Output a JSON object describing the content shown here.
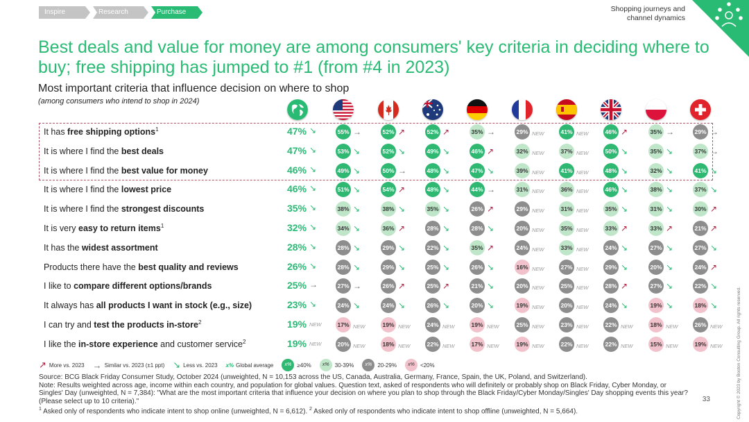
{
  "breadcrumb": [
    {
      "label": "Inspire",
      "active": false
    },
    {
      "label": "Research",
      "active": false
    },
    {
      "label": "Purchase",
      "active": true
    }
  ],
  "section_title": "Shopping journeys and channel dynamics",
  "title": "Best deals and value for money are among consumers' key criteria in deciding where to buy; free shipping has jumped to #1 (from #4 in 2023)",
  "chart_data": {
    "type": "table",
    "title": "Most important criteria that influence decision on where to shop",
    "subtitle": "(among consumers who intend to shop in 2024)",
    "columns": [
      "Global",
      "US",
      "Canada",
      "Australia",
      "Germany",
      "France",
      "Spain",
      "UK",
      "Poland",
      "Switzerland"
    ],
    "rows": [
      {
        "pre": "It has ",
        "bold": "free shipping options",
        "post": "",
        "sup": "1",
        "global": {
          "v": 47,
          "t": "down"
        },
        "cells": [
          {
            "v": 55,
            "t": "flat"
          },
          {
            "v": 52,
            "t": "up"
          },
          {
            "v": 52,
            "t": "up"
          },
          {
            "v": 35,
            "t": "flat"
          },
          {
            "v": 29,
            "t": "new"
          },
          {
            "v": 41,
            "t": "new"
          },
          {
            "v": 46,
            "t": "up"
          },
          {
            "v": 35,
            "t": "flat"
          },
          {
            "v": 29,
            "t": "flat"
          }
        ]
      },
      {
        "pre": "It is where I find the ",
        "bold": "best deals",
        "post": "",
        "sup": "",
        "global": {
          "v": 47,
          "t": "down"
        },
        "cells": [
          {
            "v": 53,
            "t": "down"
          },
          {
            "v": 52,
            "t": "down"
          },
          {
            "v": 49,
            "t": "down"
          },
          {
            "v": 46,
            "t": "up"
          },
          {
            "v": 32,
            "t": "new"
          },
          {
            "v": 37,
            "t": "new"
          },
          {
            "v": 50,
            "t": "down"
          },
          {
            "v": 35,
            "t": "down"
          },
          {
            "v": 37,
            "t": "flat"
          }
        ]
      },
      {
        "pre": "It is where I find the ",
        "bold": "best value for money",
        "post": "",
        "sup": "",
        "global": {
          "v": 46,
          "t": "down"
        },
        "cells": [
          {
            "v": 49,
            "t": "down"
          },
          {
            "v": 50,
            "t": "flat"
          },
          {
            "v": 48,
            "t": "down"
          },
          {
            "v": 47,
            "t": "down"
          },
          {
            "v": 39,
            "t": "new"
          },
          {
            "v": 41,
            "t": "new"
          },
          {
            "v": 48,
            "t": "down"
          },
          {
            "v": 32,
            "t": "down"
          },
          {
            "v": 41,
            "t": "down"
          }
        ]
      },
      {
        "pre": "It is where I find the ",
        "bold": "lowest price",
        "post": "",
        "sup": "",
        "global": {
          "v": 46,
          "t": "down"
        },
        "cells": [
          {
            "v": 51,
            "t": "down"
          },
          {
            "v": 54,
            "t": "up"
          },
          {
            "v": 48,
            "t": "down"
          },
          {
            "v": 44,
            "t": "flat"
          },
          {
            "v": 31,
            "t": "new"
          },
          {
            "v": 36,
            "t": "new"
          },
          {
            "v": 46,
            "t": "down"
          },
          {
            "v": 38,
            "t": "down"
          },
          {
            "v": 37,
            "t": "down"
          }
        ]
      },
      {
        "pre": "It is where I find the ",
        "bold": "strongest discounts",
        "post": "",
        "sup": "",
        "global": {
          "v": 35,
          "t": "down"
        },
        "cells": [
          {
            "v": 38,
            "t": "down"
          },
          {
            "v": 38,
            "t": "down"
          },
          {
            "v": 35,
            "t": "down"
          },
          {
            "v": 26,
            "t": "up"
          },
          {
            "v": 29,
            "t": "new"
          },
          {
            "v": 31,
            "t": "new"
          },
          {
            "v": 35,
            "t": "down"
          },
          {
            "v": 31,
            "t": "down"
          },
          {
            "v": 30,
            "t": "up"
          }
        ]
      },
      {
        "pre": "It is very ",
        "bold": "easy to return items",
        "post": "",
        "sup": "1",
        "global": {
          "v": 32,
          "t": "down"
        },
        "cells": [
          {
            "v": 34,
            "t": "down"
          },
          {
            "v": 36,
            "t": "up"
          },
          {
            "v": 28,
            "t": "down"
          },
          {
            "v": 28,
            "t": "down"
          },
          {
            "v": 20,
            "t": "new"
          },
          {
            "v": 35,
            "t": "new"
          },
          {
            "v": 33,
            "t": "up"
          },
          {
            "v": 33,
            "t": "up"
          },
          {
            "v": 21,
            "t": "up"
          }
        ]
      },
      {
        "pre": "It has the ",
        "bold": "widest assortment",
        "post": "",
        "sup": "",
        "global": {
          "v": 28,
          "t": "down"
        },
        "cells": [
          {
            "v": 28,
            "t": "down"
          },
          {
            "v": 29,
            "t": "down"
          },
          {
            "v": 22,
            "t": "down"
          },
          {
            "v": 35,
            "t": "up"
          },
          {
            "v": 24,
            "t": "new"
          },
          {
            "v": 33,
            "t": "new"
          },
          {
            "v": 24,
            "t": "down"
          },
          {
            "v": 27,
            "t": "down"
          },
          {
            "v": 27,
            "t": "down"
          }
        ]
      },
      {
        "pre": "Products there have the ",
        "bold": "best quality and reviews",
        "post": "",
        "sup": "",
        "global": {
          "v": 26,
          "t": "down"
        },
        "cells": [
          {
            "v": 28,
            "t": "down"
          },
          {
            "v": 29,
            "t": "down"
          },
          {
            "v": 25,
            "t": "down"
          },
          {
            "v": 26,
            "t": "down"
          },
          {
            "v": 16,
            "t": "new"
          },
          {
            "v": 27,
            "t": "new"
          },
          {
            "v": 29,
            "t": "down"
          },
          {
            "v": 20,
            "t": "down"
          },
          {
            "v": 24,
            "t": "up"
          }
        ]
      },
      {
        "pre": "I like to ",
        "bold": "compare different options/brands",
        "post": "",
        "sup": "",
        "global": {
          "v": 25,
          "t": "flat"
        },
        "cells": [
          {
            "v": 27,
            "t": "flat"
          },
          {
            "v": 26,
            "t": "up"
          },
          {
            "v": 25,
            "t": "up"
          },
          {
            "v": 21,
            "t": "down"
          },
          {
            "v": 20,
            "t": "new"
          },
          {
            "v": 25,
            "t": "new"
          },
          {
            "v": 28,
            "t": "up"
          },
          {
            "v": 27,
            "t": "down"
          },
          {
            "v": 22,
            "t": "down"
          }
        ]
      },
      {
        "pre": "It always has ",
        "bold": "all products I want in stock (e.g., size)",
        "post": "",
        "sup": "",
        "global": {
          "v": 23,
          "t": "down"
        },
        "cells": [
          {
            "v": 24,
            "t": "down"
          },
          {
            "v": 24,
            "t": "down"
          },
          {
            "v": 26,
            "t": "down"
          },
          {
            "v": 20,
            "t": "down"
          },
          {
            "v": 19,
            "t": "new"
          },
          {
            "v": 20,
            "t": "new"
          },
          {
            "v": 24,
            "t": "down"
          },
          {
            "v": 19,
            "t": "down"
          },
          {
            "v": 18,
            "t": "down"
          }
        ]
      },
      {
        "pre": "I can try and ",
        "bold": "test the products in-store",
        "post": "",
        "sup": "2",
        "global": {
          "v": 19,
          "t": "new"
        },
        "cells": [
          {
            "v": 17,
            "t": "new"
          },
          {
            "v": 19,
            "t": "new"
          },
          {
            "v": 24,
            "t": "new"
          },
          {
            "v": 19,
            "t": "new"
          },
          {
            "v": 25,
            "t": "new"
          },
          {
            "v": 23,
            "t": "new"
          },
          {
            "v": 22,
            "t": "new"
          },
          {
            "v": 18,
            "t": "new"
          },
          {
            "v": 26,
            "t": "new"
          }
        ]
      },
      {
        "pre": "I like the ",
        "bold": "in-store experience",
        "post": " and customer service",
        "sup": "2",
        "global": {
          "v": 19,
          "t": "new"
        },
        "cells": [
          {
            "v": 20,
            "t": "new"
          },
          {
            "v": 18,
            "t": "new"
          },
          {
            "v": 22,
            "t": "new"
          },
          {
            "v": 17,
            "t": "new"
          },
          {
            "v": 19,
            "t": "new"
          },
          {
            "v": 22,
            "t": "new"
          },
          {
            "v": 22,
            "t": "new"
          },
          {
            "v": 15,
            "t": "new"
          },
          {
            "v": 19,
            "t": "new"
          }
        ]
      }
    ],
    "legend": {
      "more": "More vs. 2023",
      "similar": "Similar vs. 2023 (±1 ppt)",
      "less": "Less vs. 2023",
      "global_symbol": "x%",
      "global_avg": "Global average",
      "bubble_symbol": "x%",
      "b40": "≥40%",
      "b30": "30-39%",
      "b20": "20-29%",
      "blt": "<20%"
    },
    "new_label": "NEW"
  },
  "source": {
    "line1": "Source: BCG Black Friday Consumer Study, October 2024 (unweighted, N = 10,153 across the US, Canada, Australia, Germany, France, Spain, the UK, Poland, and Switzerland).",
    "line2": "Note: Results weighted across age, income within each country, and population for global values. Question text, asked of respondents who will definitely or probably shop on Black Friday, Cyber Monday, or Singles' Day (unweighted, N = 7,384): \"What are the most important criteria that influence your decision on where you plan to shop through the Black Friday/Cyber Monday/Singles' Day shopping events this year? (Please select up to 10 criteria).\"",
    "line3a": "Asked only of respondents who indicate intent to shop online (unweighted, N = 6,612).",
    "line3b": "Asked only of respondents who indicate intent to shop offline (unweighted, N = 5,664).",
    "sup1": "1",
    "sup2": "2"
  },
  "page_number": "33",
  "copyright": "Copyright © 2023 by Boston Consulting Group. All rights reserved."
}
